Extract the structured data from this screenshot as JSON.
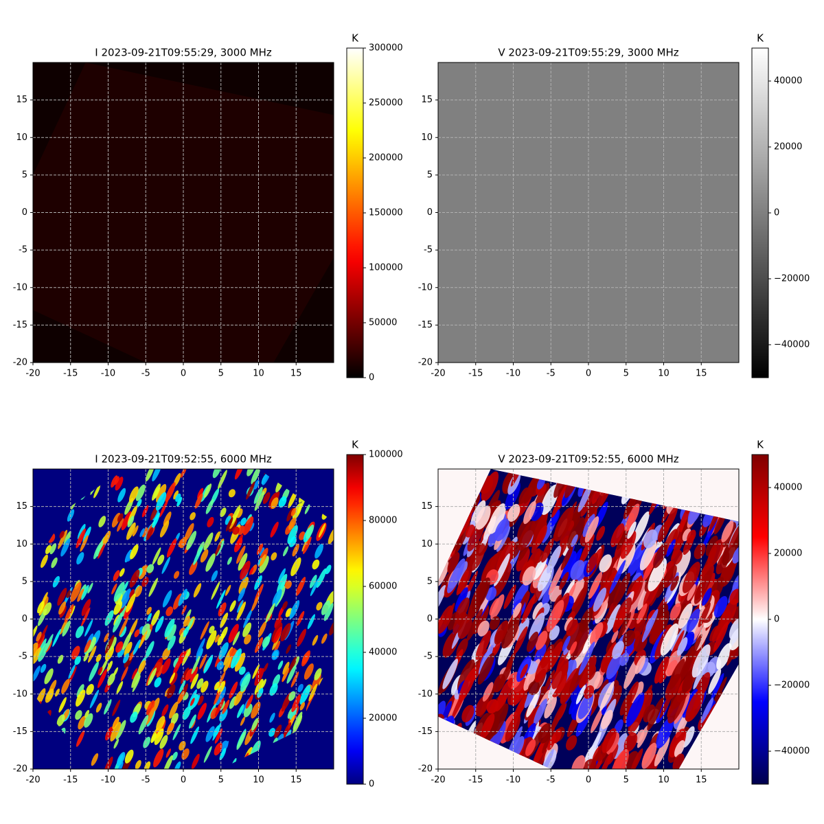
{
  "chart_data": [
    {
      "type": "heatmap",
      "title": "I 2023-09-21T09:55:29, 3000 MHz",
      "xlim": [
        -20,
        20
      ],
      "ylim": [
        -20,
        20
      ],
      "xticks": [
        -20,
        -15,
        -10,
        -5,
        0,
        5,
        10,
        15
      ],
      "yticks": [
        -20,
        -15,
        -10,
        -5,
        0,
        5,
        10,
        15
      ],
      "grid": true,
      "colorbar_label": "K",
      "cmap": "hot",
      "clim": [
        0,
        300000
      ],
      "cticks": [
        0,
        50000,
        100000,
        150000,
        200000,
        250000,
        300000
      ]
    },
    {
      "type": "heatmap",
      "title": "V 2023-09-21T09:55:29, 3000 MHz",
      "xlim": [
        -20,
        20
      ],
      "ylim": [
        -20,
        20
      ],
      "xticks": [
        -20,
        -15,
        -10,
        -5,
        0,
        5,
        10,
        15
      ],
      "yticks": [
        -20,
        -15,
        -10,
        -5,
        0,
        5,
        10,
        15
      ],
      "grid": true,
      "colorbar_label": "K",
      "cmap": "gray",
      "clim": [
        -50000,
        50000
      ],
      "cticks": [
        {
          "value": -40000,
          "label": "−40000"
        },
        {
          "value": -20000,
          "label": "−20000"
        },
        0,
        20000,
        40000
      ]
    },
    {
      "type": "heatmap",
      "title": "I 2023-09-21T09:52:55, 6000 MHz",
      "xlim": [
        -20,
        20
      ],
      "ylim": [
        -20,
        20
      ],
      "xticks": [
        -20,
        -15,
        -10,
        -5,
        0,
        5,
        10,
        15
      ],
      "yticks": [
        -20,
        -15,
        -10,
        -5,
        0,
        5,
        10,
        15
      ],
      "grid": true,
      "colorbar_label": "K",
      "cmap": "jet",
      "clim": [
        0,
        100000
      ],
      "cticks": [
        0,
        20000,
        40000,
        60000,
        80000,
        100000
      ]
    },
    {
      "type": "heatmap",
      "title": "V 2023-09-21T09:52:55, 6000 MHz",
      "xlim": [
        -20,
        20
      ],
      "ylim": [
        -20,
        20
      ],
      "xticks": [
        -20,
        -15,
        -10,
        -5,
        0,
        5,
        10,
        15
      ],
      "yticks": [
        -20,
        -15,
        -10,
        -5,
        0,
        5,
        10,
        15
      ],
      "grid": true,
      "colorbar_label": "K",
      "cmap": "seismic",
      "clim": [
        -50000,
        50000
      ],
      "cticks": [
        {
          "value": -40000,
          "label": "−40000"
        },
        {
          "value": -20000,
          "label": "−20000"
        },
        0,
        20000,
        40000
      ]
    }
  ]
}
